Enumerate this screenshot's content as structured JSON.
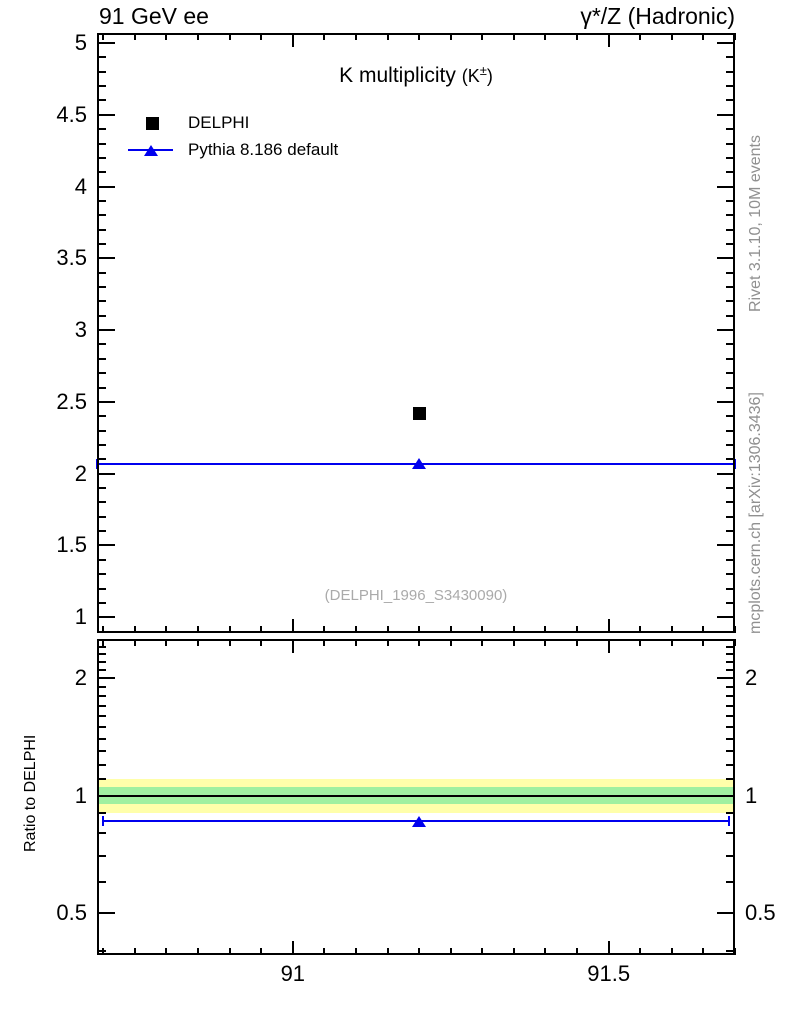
{
  "header": {
    "left": "91 GeV ee",
    "right": "γ*/Z (Hadronic)"
  },
  "side_notes": {
    "rivet": "Rivet 3.1.10,  10M events",
    "mcplots": "mcplots.cern.ch [arXiv:1306.3436]"
  },
  "main": {
    "title_main": "K multiplicity",
    "title_paren_open": "(K",
    "title_sup": "±",
    "title_paren_close": ")",
    "watermark": "(DELPHI_1996_S3430090)",
    "legend": [
      {
        "label": "DELPHI",
        "marker": "square",
        "color": "#000000"
      },
      {
        "label": "Pythia 8.186 default",
        "marker": "triangle-line",
        "color": "#0000ee"
      }
    ]
  },
  "ratio_axis_title": "Ratio to DELPHI",
  "colors": {
    "mc_blue": "#0000ee",
    "band_outer": "#ffffaa",
    "band_inner": "#a0f0a0",
    "gray_note": "#909090",
    "watermark_gray": "#aaaaaa"
  },
  "chart_data": [
    {
      "type": "scatter",
      "title": "K multiplicity (K±)",
      "xlabel": "",
      "ylabel": "",
      "xlim": [
        90.69,
        91.7
      ],
      "ylim": [
        0.89,
        5.07
      ],
      "x_major_ticks": [
        91,
        91.5
      ],
      "x_major_tick_labels": [
        "91",
        "91.5"
      ],
      "x_minor_step": 0.05,
      "y_major_ticks": [
        1,
        1.5,
        2,
        2.5,
        3,
        3.5,
        4,
        4.5,
        5
      ],
      "y_major_tick_labels": [
        "1",
        "1.5",
        "2",
        "2.5",
        "3",
        "3.5",
        "4",
        "4.5",
        "5"
      ],
      "y_minor_step": 0.1,
      "grid": false,
      "legend_position": "top-left",
      "annotation": "(DELPHI_1996_S3430090)",
      "series": [
        {
          "name": "DELPHI",
          "marker": "square",
          "color": "#000000",
          "points": [
            {
              "x": 91.2,
              "y": 2.42
            }
          ]
        },
        {
          "name": "Pythia 8.186 default",
          "marker": "triangle-up",
          "color": "#0000ee",
          "points": [
            {
              "x": 91.2,
              "y": 2.07
            }
          ],
          "hline": {
            "y": 2.07,
            "x1": 90.69,
            "x2": 91.7
          }
        }
      ]
    },
    {
      "type": "ratio",
      "title": "",
      "xlabel": "",
      "ylabel": "Ratio to DELPHI",
      "yscale": "log",
      "xlim": [
        90.69,
        91.7
      ],
      "ylim": [
        0.39,
        2.52
      ],
      "x_major_ticks": [
        91,
        91.5
      ],
      "x_minor_step": 0.05,
      "y_major_ticks": [
        0.5,
        1,
        2
      ],
      "y_major_tick_labels": [
        "0.5",
        "1",
        "2"
      ],
      "y_minor_ticks": [
        0.4,
        0.6,
        0.7,
        0.8,
        0.9,
        1.1,
        1.2,
        1.3,
        1.4,
        1.5,
        1.6,
        1.7,
        1.8,
        1.9,
        2.1,
        2.2,
        2.3,
        2.4,
        2.5
      ],
      "bands": [
        {
          "y1": 0.9,
          "y2": 1.1,
          "color": "#ffffaa"
        },
        {
          "y1": 0.95,
          "y2": 1.05,
          "color": "#a0f0a0"
        }
      ],
      "reference_line_y": 1.0,
      "series": [
        {
          "name": "Pythia 8.186 default",
          "marker": "triangle-up",
          "color": "#0000ee",
          "points": [
            {
              "x": 91.2,
              "y": 0.86
            }
          ],
          "hline": {
            "y": 0.86,
            "x1": 90.7,
            "x2": 91.69
          }
        }
      ]
    }
  ]
}
